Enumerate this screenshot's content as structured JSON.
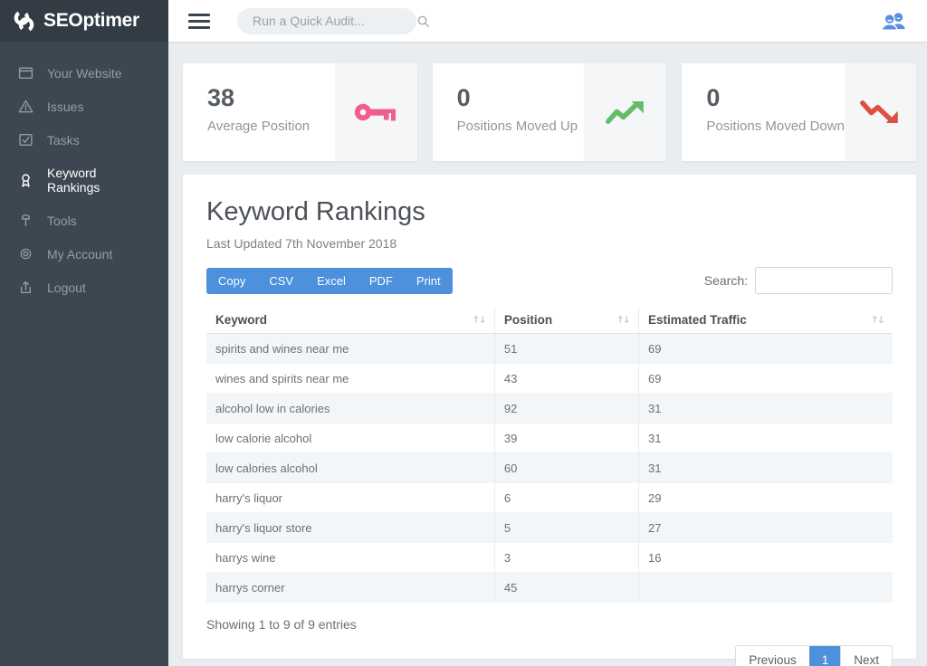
{
  "app": {
    "logo_text": "SEOptimer"
  },
  "colors": {
    "accent_blue": "#4d90dc",
    "pink": "#ef5e8d",
    "green": "#66bb6a",
    "red": "#dd5145",
    "sidebar_bg": "#3d4751"
  },
  "sidebar": {
    "items": [
      {
        "label": "Your Website",
        "icon": "website-icon",
        "active": false
      },
      {
        "label": "Issues",
        "icon": "issues-icon",
        "active": false
      },
      {
        "label": "Tasks",
        "icon": "tasks-icon",
        "active": false
      },
      {
        "label": "Keyword Rankings",
        "icon": "keyword-rankings-icon",
        "active": true
      },
      {
        "label": "Tools",
        "icon": "tools-icon",
        "active": false
      },
      {
        "label": "My Account",
        "icon": "account-icon",
        "active": false
      },
      {
        "label": "Logout",
        "icon": "logout-icon",
        "active": false
      }
    ]
  },
  "topbar": {
    "search_placeholder": "Run a Quick Audit...",
    "right_icon": "users-icon"
  },
  "cards": [
    {
      "value": "38",
      "label": "Average Position",
      "icon": "key-icon"
    },
    {
      "value": "0",
      "label": "Positions Moved Up",
      "icon": "trend-up-icon"
    },
    {
      "value": "0",
      "label": "Positions Moved Down",
      "icon": "trend-down-icon"
    }
  ],
  "panel": {
    "title": "Keyword Rankings",
    "subtitle": "Last Updated 7th November 2018",
    "export_buttons": [
      "Copy",
      "CSV",
      "Excel",
      "PDF",
      "Print"
    ],
    "search_label": "Search:",
    "search_value": "",
    "table": {
      "headers": [
        "Keyword",
        "Position",
        "Estimated Traffic"
      ],
      "rows": [
        [
          "spirits and wines near me",
          "51",
          "69"
        ],
        [
          "wines and spirits near me",
          "43",
          "69"
        ],
        [
          "alcohol low in calories",
          "92",
          "31"
        ],
        [
          "low calorie alcohol",
          "39",
          "31"
        ],
        [
          "low calories alcohol",
          "60",
          "31"
        ],
        [
          "harry's liquor",
          "6",
          "29"
        ],
        [
          "harry's liquor store",
          "5",
          "27"
        ],
        [
          "harrys wine",
          "3",
          "16"
        ],
        [
          "harrys corner",
          "45",
          ""
        ]
      ]
    },
    "footer": {
      "showing": "Showing 1 to 9 of 9 entries",
      "pagination": {
        "previous": "Previous",
        "current": "1",
        "next": "Next"
      }
    }
  }
}
